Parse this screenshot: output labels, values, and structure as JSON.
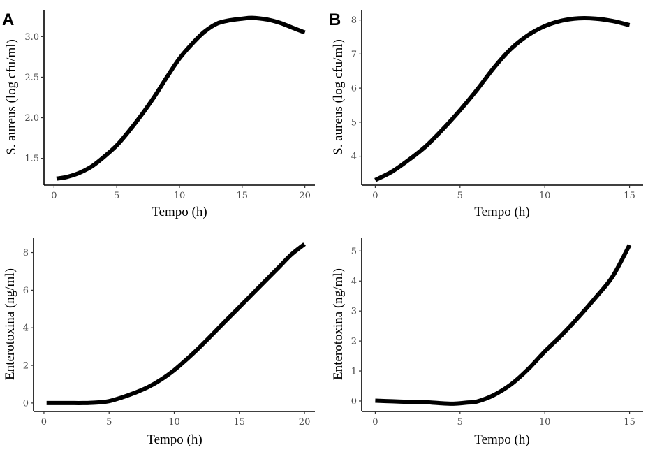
{
  "chart_data": [
    {
      "id": "A-top",
      "type": "line",
      "panel_label": "A",
      "title": "",
      "xlabel": "Tempo (h)",
      "ylabel": "S. aureus (log cfu/ml)",
      "xlim": [
        -0.8,
        20.8
      ],
      "ylim": [
        1.17,
        3.33
      ],
      "xticks": [
        0,
        5,
        10,
        15,
        20
      ],
      "xtick_labels": [
        "0",
        "5",
        "10",
        "15",
        "20"
      ],
      "yticks": [
        1.5,
        2.0,
        2.5,
        3.0
      ],
      "ytick_labels": [
        "1.5",
        "2.0",
        "2.5",
        "3.0"
      ],
      "grid": false,
      "series": [
        {
          "color": "#000000",
          "x": [
            0.2,
            1,
            2,
            3,
            4,
            5,
            6,
            7,
            8,
            9,
            10,
            11,
            12,
            13,
            14,
            15,
            15.8,
            17,
            18,
            19,
            20
          ],
          "y": [
            1.25,
            1.27,
            1.32,
            1.4,
            1.52,
            1.66,
            1.84,
            2.04,
            2.26,
            2.5,
            2.73,
            2.91,
            3.06,
            3.16,
            3.2,
            3.22,
            3.23,
            3.21,
            3.17,
            3.11,
            3.05
          ]
        }
      ]
    },
    {
      "id": "B-top",
      "type": "line",
      "panel_label": "B",
      "title": "",
      "xlabel": "Tempo (h)",
      "ylabel": "S. aureus (log cfu/ml)",
      "xlim": [
        -0.8,
        15.8
      ],
      "ylim": [
        3.15,
        8.3
      ],
      "xticks": [
        0,
        5,
        10,
        15
      ],
      "xtick_labels": [
        "0",
        "5",
        "10",
        "15"
      ],
      "yticks": [
        4,
        5,
        6,
        7,
        8
      ],
      "ytick_labels": [
        "4",
        "5",
        "6",
        "7",
        "8"
      ],
      "grid": false,
      "series": [
        {
          "color": "#000000",
          "x": [
            0,
            1,
            2,
            3,
            4,
            5,
            6,
            7,
            8,
            9,
            10,
            11,
            12,
            13,
            14,
            15
          ],
          "y": [
            3.3,
            3.55,
            3.9,
            4.3,
            4.8,
            5.35,
            5.95,
            6.6,
            7.15,
            7.55,
            7.82,
            7.98,
            8.05,
            8.04,
            7.97,
            7.85
          ]
        }
      ]
    },
    {
      "id": "A-bottom",
      "type": "line",
      "panel_label": "",
      "title": "",
      "xlabel": "Tempo (h)",
      "ylabel": "Enterotoxina (ng/ml)",
      "xlim": [
        -0.8,
        20.8
      ],
      "ylim": [
        -0.45,
        8.8
      ],
      "xticks": [
        0,
        5,
        10,
        15,
        20
      ],
      "xtick_labels": [
        "0",
        "5",
        "10",
        "15",
        "20"
      ],
      "yticks": [
        0,
        2,
        4,
        6,
        8
      ],
      "ytick_labels": [
        "0",
        "2",
        "4",
        "6",
        "8"
      ],
      "grid": false,
      "series": [
        {
          "color": "#000000",
          "x": [
            0.2,
            1,
            2,
            3,
            4,
            5,
            6,
            7,
            8,
            9,
            10,
            11,
            12,
            13,
            14,
            15,
            16,
            17,
            18,
            19,
            20
          ],
          "y": [
            0,
            0,
            0,
            0,
            0.02,
            0.1,
            0.3,
            0.55,
            0.85,
            1.25,
            1.75,
            2.35,
            3.0,
            3.7,
            4.4,
            5.1,
            5.8,
            6.5,
            7.2,
            7.9,
            8.45
          ]
        }
      ]
    },
    {
      "id": "B-bottom",
      "type": "line",
      "panel_label": "",
      "title": "",
      "xlabel": "Tempo (h)",
      "ylabel": "Enterotoxina (ng/ml)",
      "xlim": [
        -0.8,
        15.8
      ],
      "ylim": [
        -0.35,
        5.45
      ],
      "xticks": [
        0,
        5,
        10,
        15
      ],
      "xtick_labels": [
        "0",
        "5",
        "10",
        "15"
      ],
      "yticks": [
        0,
        1,
        2,
        3,
        4,
        5
      ],
      "ytick_labels": [
        "0",
        "1",
        "2",
        "3",
        "4",
        "5"
      ],
      "grid": false,
      "series": [
        {
          "color": "#000000",
          "x": [
            0,
            1,
            2,
            3,
            4,
            4.7,
            5.5,
            6,
            7,
            8,
            9,
            10,
            11,
            12,
            13,
            14,
            15
          ],
          "y": [
            0.01,
            -0.01,
            -0.03,
            -0.04,
            -0.08,
            -0.09,
            -0.05,
            -0.02,
            0.2,
            0.55,
            1.05,
            1.65,
            2.2,
            2.8,
            3.45,
            4.15,
            5.2
          ]
        }
      ]
    }
  ]
}
